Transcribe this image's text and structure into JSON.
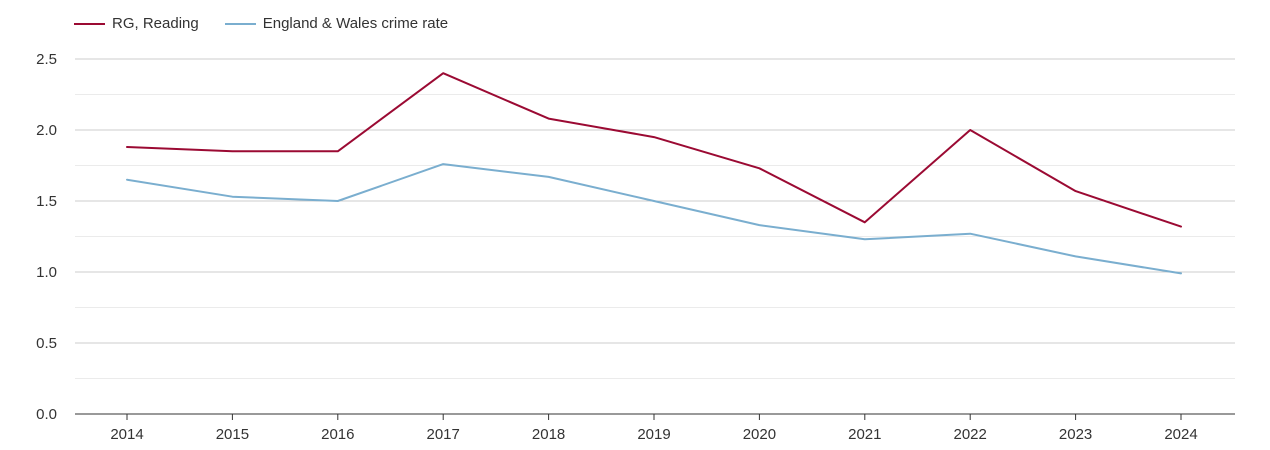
{
  "chart_data": {
    "type": "line",
    "title": "",
    "xlabel": "",
    "ylabel": "",
    "categories": [
      "2014",
      "2015",
      "2016",
      "2017",
      "2018",
      "2019",
      "2020",
      "2021",
      "2022",
      "2023",
      "2024"
    ],
    "series": [
      {
        "name": "RG, Reading",
        "color": "#9b0a33",
        "values": [
          1.88,
          1.85,
          1.85,
          2.4,
          2.08,
          1.95,
          1.73,
          1.35,
          2.0,
          1.57,
          1.32
        ]
      },
      {
        "name": "England & Wales crime rate",
        "color": "#7aaecf",
        "values": [
          1.65,
          1.53,
          1.5,
          1.76,
          1.67,
          1.5,
          1.33,
          1.23,
          1.27,
          1.11,
          0.99
        ]
      }
    ],
    "ylim": [
      0,
      2.5
    ],
    "yticks": [
      "0.0",
      "0.5",
      "1.0",
      "1.5",
      "2.0",
      "2.5"
    ],
    "grid": true,
    "legend_position": "top-left"
  }
}
